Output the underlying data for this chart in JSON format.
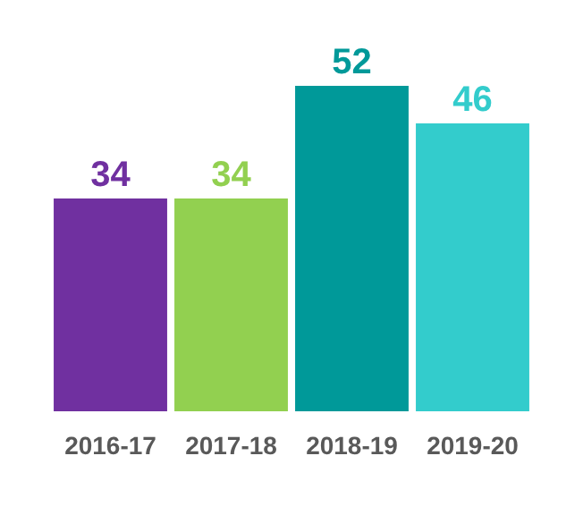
{
  "chart_data": {
    "type": "bar",
    "categories": [
      "2016-17",
      "2017-18",
      "2018-19",
      "2019-20"
    ],
    "values": [
      34,
      34,
      52,
      46
    ],
    "colors": [
      "#7030a0",
      "#92d050",
      "#009999",
      "#33cccc"
    ],
    "data_labels": true
  }
}
